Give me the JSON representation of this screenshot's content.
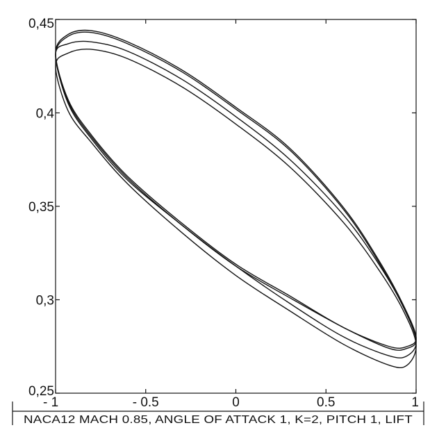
{
  "chart_data": {
    "type": "line",
    "title": "",
    "caption": "NACA12  MACH 0.85, ANGLE OF ATTACK 1, K=2, PITCH 1, LIFT",
    "xlabel": "",
    "ylabel": "",
    "xlim": [
      -1,
      1
    ],
    "ylim": [
      0.25,
      0.45
    ],
    "x_ticks": [
      -1,
      -0.5,
      0,
      0.5,
      1
    ],
    "x_tick_labels": [
      "- 1",
      "- 0.5",
      "0",
      "0.5",
      "1"
    ],
    "y_ticks": [
      0.25,
      0.3,
      0.35,
      0.4,
      0.45
    ],
    "y_tick_labels": [
      "0,25",
      "0,3",
      "0,35",
      "0,4",
      "0,45"
    ],
    "grid": false,
    "legend": false,
    "line_color": "#111111",
    "series": [
      {
        "x": [
          -1,
          -0.93,
          -0.8,
          -0.6,
          -0.3,
          0,
          0.3,
          0.6,
          0.8,
          0.93,
          1,
          0.95,
          0.85,
          0.6,
          0.3,
          0,
          -0.3,
          -0.6,
          -0.8,
          -0.93,
          -1
        ],
        "y": [
          0.431,
          0.441,
          0.443,
          0.437,
          0.422,
          0.402,
          0.38,
          0.348,
          0.319,
          0.296,
          0.279,
          0.274,
          0.274,
          0.285,
          0.301,
          0.318,
          0.34,
          0.365,
          0.387,
          0.406,
          0.431
        ]
      },
      {
        "x": [
          -1,
          -0.93,
          -0.8,
          -0.6,
          -0.3,
          0,
          0.3,
          0.6,
          0.8,
          0.93,
          1,
          0.95,
          0.85,
          0.6,
          0.3,
          0,
          -0.3,
          -0.6,
          -0.8,
          -0.93,
          -1
        ],
        "y": [
          0.432,
          0.442,
          0.444,
          0.438,
          0.423,
          0.403,
          0.381,
          0.349,
          0.32,
          0.297,
          0.28,
          0.275,
          0.275,
          0.285,
          0.302,
          0.319,
          0.341,
          0.366,
          0.388,
          0.407,
          0.432
        ]
      },
      {
        "x": [
          -1,
          -0.93,
          -0.8,
          -0.6,
          -0.3,
          0,
          0.3,
          0.6,
          0.8,
          0.93,
          1,
          0.95,
          0.85,
          0.6,
          0.3,
          0,
          -0.3,
          -0.6,
          -0.8,
          -0.93,
          -1
        ],
        "y": [
          0.431,
          0.437,
          0.438,
          0.433,
          0.418,
          0.398,
          0.375,
          0.345,
          0.318,
          0.296,
          0.278,
          0.27,
          0.27,
          0.28,
          0.298,
          0.318,
          0.34,
          0.364,
          0.386,
          0.405,
          0.431
        ]
      },
      {
        "x": [
          -1,
          -0.93,
          -0.8,
          -0.6,
          -0.3,
          0,
          0.3,
          0.6,
          0.8,
          0.93,
          1,
          0.95,
          0.85,
          0.6,
          0.3,
          0,
          -0.3,
          -0.6,
          -0.8,
          -0.93,
          -1
        ],
        "y": [
          0.425,
          0.432,
          0.434,
          0.429,
          0.414,
          0.394,
          0.371,
          0.341,
          0.315,
          0.294,
          0.276,
          0.265,
          0.265,
          0.276,
          0.294,
          0.313,
          0.336,
          0.362,
          0.384,
          0.401,
          0.425
        ]
      }
    ]
  }
}
